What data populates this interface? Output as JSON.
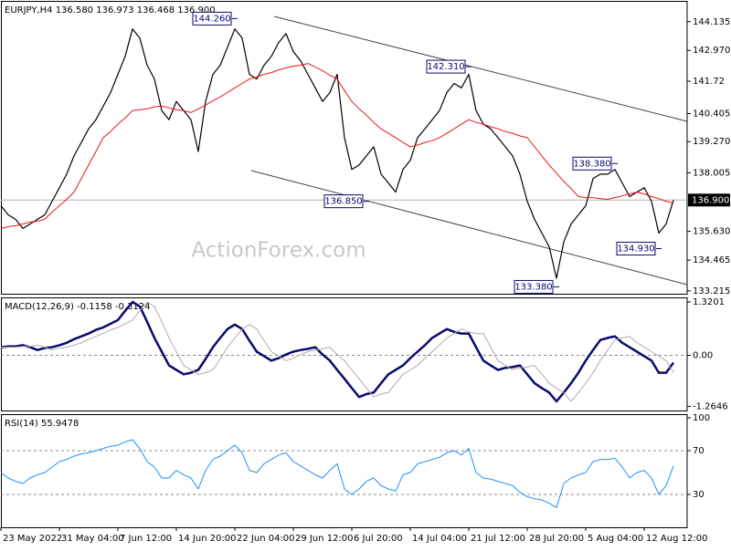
{
  "chart_data": [
    {
      "type": "line",
      "title": "EURJPY,H4  136.580 136.973 136.468 136.900",
      "watermark": "ActionForex.com",
      "ylim": [
        133.1,
        144.94
      ],
      "yticks": [
        144.135,
        {
          "value": 142.97,
          "label": "142.970"
        },
        141.72,
        140.405,
        {
          "value": 139.27,
          "label": "139.270"
        },
        138.005,
        {
          "value": 135.63,
          "label": "135.630"
        },
        134.465,
        133.215
      ],
      "last_price": {
        "value": 136.9,
        "label": "136.900"
      },
      "series": [
        {
          "color": "#000000",
          "line_width": 1.2,
          "values": [
            136.67,
            136.3,
            136.12,
            135.75,
            135.93,
            136.12,
            136.3,
            136.85,
            137.4,
            137.95,
            138.69,
            139.24,
            139.79,
            140.16,
            140.71,
            141.26,
            142.0,
            142.73,
            143.84,
            143.47,
            142.37,
            141.81,
            140.53,
            140.16,
            140.9,
            140.53,
            140.16,
            138.87,
            140.9,
            142.0,
            142.37,
            143.1,
            143.84,
            143.47,
            142.0,
            141.81,
            142.37,
            142.73,
            143.29,
            143.65,
            142.92,
            142.55,
            142.0,
            141.45,
            140.9,
            141.26,
            142.0,
            139.43,
            138.14,
            138.32,
            138.69,
            139.06,
            137.95,
            137.59,
            137.22,
            138.14,
            138.51,
            139.43,
            139.79,
            140.16,
            140.53,
            141.26,
            141.63,
            141.45,
            142.0,
            140.53,
            139.98,
            139.79,
            139.43,
            139.06,
            138.69,
            137.95,
            136.85,
            136.12,
            135.56,
            135.01,
            133.73,
            135.2,
            135.93,
            136.3,
            136.67,
            137.77,
            137.95,
            137.95,
            138.14,
            137.59,
            137.04,
            137.22,
            137.4,
            136.85,
            135.56,
            135.93,
            136.9
          ]
        },
        {
          "color": "#e8161b",
          "line_width": 1,
          "values": [
            135.75,
            135.82,
            135.86,
            135.93,
            136.01,
            136.04,
            136.12,
            136.41,
            136.67,
            136.93,
            137.22,
            137.77,
            138.32,
            138.87,
            139.43,
            139.68,
            139.98,
            140.23,
            140.53,
            140.56,
            140.6,
            140.68,
            140.71,
            140.64,
            140.56,
            140.53,
            140.45,
            140.6,
            140.75,
            140.93,
            141.08,
            141.26,
            141.45,
            141.63,
            141.81,
            141.89,
            142.0,
            142.07,
            142.18,
            142.26,
            142.33,
            142.37,
            142.44,
            142.29,
            142.15,
            141.96,
            141.81,
            141.34,
            140.9,
            140.6,
            140.34,
            140.05,
            139.79,
            139.61,
            139.43,
            139.24,
            139.06,
            139.13,
            139.24,
            139.31,
            139.43,
            139.61,
            139.79,
            139.98,
            140.16,
            140.05,
            139.98,
            139.87,
            139.79,
            139.68,
            139.61,
            139.5,
            139.43,
            139.06,
            138.69,
            138.32,
            137.99,
            137.66,
            137.37,
            137.04,
            137.0,
            137.0,
            136.96,
            136.93,
            137.0,
            137.07,
            137.15,
            137.22,
            137.15,
            137.04,
            136.96,
            136.85,
            136.78
          ]
        }
      ],
      "annotations": [
        {
          "label": "144.260",
          "value": 144.26,
          "at": 32
        },
        {
          "label": "142.310",
          "value": 142.31,
          "at": 64
        },
        {
          "label": "136.850",
          "value": 136.85,
          "at": 50
        },
        {
          "label": "133.380",
          "value": 133.38,
          "at": 76
        },
        {
          "label": "138.380",
          "value": 138.38,
          "at": 84
        },
        {
          "label": "134.930",
          "value": 134.93,
          "at": 90
        }
      ]
    },
    {
      "type": "line",
      "title": "MACD(12,26,9) -0.1158 -0.3124",
      "ylim": [
        -1.365,
        1.41
      ],
      "yticks": [
        1.3201,
        {
          "value": 0,
          "label": "0.00"
        },
        -1.2646
      ],
      "levels": [
        0
      ],
      "series": [
        {
          "color": "#0a0a6e",
          "line_width": 2.5,
          "values": [
            0.2,
            0.22,
            0.22,
            0.25,
            0.2,
            0.13,
            0.18,
            0.2,
            0.25,
            0.31,
            0.4,
            0.47,
            0.54,
            0.63,
            0.69,
            0.78,
            0.87,
            1.1,
            1.32,
            1.21,
            0.83,
            0.43,
            0.09,
            -0.25,
            -0.36,
            -0.47,
            -0.43,
            -0.36,
            -0.09,
            0.2,
            0.43,
            0.65,
            0.76,
            0.65,
            0.36,
            0.09,
            -0.02,
            -0.13,
            -0.07,
            0.02,
            0.09,
            0.13,
            0.16,
            0.2,
            0.02,
            -0.13,
            -0.36,
            -0.58,
            -0.81,
            -1.03,
            -0.96,
            -0.92,
            -0.69,
            -0.47,
            -0.36,
            -0.25,
            -0.07,
            0.09,
            0.25,
            0.43,
            0.54,
            0.65,
            0.58,
            0.54,
            0.54,
            0.2,
            -0.13,
            -0.25,
            -0.36,
            -0.31,
            -0.29,
            -0.25,
            -0.47,
            -0.69,
            -0.81,
            -0.92,
            -1.14,
            -0.92,
            -0.69,
            -0.43,
            -0.13,
            0.13,
            0.38,
            0.43,
            0.47,
            0.31,
            0.2,
            0.09,
            -0.02,
            -0.13,
            -0.43,
            -0.43,
            -0.18
          ]
        },
        {
          "color": "#b8a8a8",
          "line_width": 1,
          "values": [
            0.2,
            0.2,
            0.2,
            0.22,
            0.22,
            0.25,
            0.2,
            0.13,
            0.18,
            0.2,
            0.25,
            0.31,
            0.4,
            0.47,
            0.54,
            0.63,
            0.69,
            0.78,
            0.87,
            1.1,
            1.32,
            1.21,
            0.83,
            0.43,
            0.09,
            -0.25,
            -0.36,
            -0.47,
            -0.43,
            -0.36,
            -0.09,
            0.2,
            0.43,
            0.65,
            0.76,
            0.65,
            0.36,
            0.09,
            -0.02,
            -0.13,
            -0.07,
            0.02,
            0.09,
            0.13,
            0.16,
            0.2,
            0.02,
            -0.13,
            -0.36,
            -0.58,
            -0.81,
            -1.03,
            -0.96,
            -0.92,
            -0.69,
            -0.47,
            -0.36,
            -0.25,
            -0.07,
            0.09,
            0.25,
            0.43,
            0.54,
            0.65,
            0.58,
            0.54,
            0.54,
            0.2,
            -0.13,
            -0.25,
            -0.36,
            -0.31,
            -0.29,
            -0.25,
            -0.47,
            -0.69,
            -0.81,
            -0.92,
            -1.14,
            -0.92,
            -0.69,
            -0.43,
            -0.13,
            0.13,
            0.38,
            0.43,
            0.47,
            0.31,
            0.2,
            0.09,
            -0.02,
            -0.13,
            -0.43
          ]
        }
      ]
    },
    {
      "type": "line",
      "title": "RSI(14) 55.9478",
      "ylim": [
        0,
        102.5
      ],
      "yticks": [
        100,
        70,
        30
      ],
      "levels": [
        70,
        30
      ],
      "categories": [
        "23 May 2022",
        null,
        null,
        null,
        null,
        null,
        null,
        null,
        "31 May 04:00",
        null,
        null,
        null,
        null,
        null,
        null,
        null,
        "7 Jun 12:00",
        null,
        null,
        null,
        null,
        null,
        null,
        null,
        "14 Jun 20:00",
        null,
        null,
        null,
        null,
        null,
        null,
        null,
        "22 Jun 04:00",
        null,
        null,
        null,
        null,
        null,
        null,
        null,
        "29 Jun 12:00",
        null,
        null,
        null,
        null,
        null,
        null,
        null,
        "6 Jul 20:00",
        null,
        null,
        null,
        null,
        null,
        null,
        null,
        "14 Jul 04:00",
        null,
        null,
        null,
        null,
        null,
        null,
        null,
        "21 Jul 12:00",
        null,
        null,
        null,
        null,
        null,
        null,
        null,
        "28 Jul 20:00",
        null,
        null,
        null,
        null,
        null,
        null,
        null,
        "5 Aug 04:00",
        null,
        null,
        null,
        null,
        null,
        null,
        null,
        "12 Aug 12:00",
        null,
        null,
        null,
        null
      ],
      "series": [
        {
          "color": "#1e90ff",
          "line_width": 1,
          "values": [
            50,
            45,
            42,
            40,
            45,
            48,
            50,
            55,
            60,
            62,
            65,
            67,
            68,
            70,
            72,
            74,
            75,
            78,
            80,
            72,
            60,
            55,
            45,
            45,
            52,
            48,
            45,
            35,
            52,
            62,
            65,
            70,
            75,
            68,
            52,
            50,
            58,
            62,
            66,
            68,
            60,
            56,
            52,
            48,
            45,
            52,
            58,
            35,
            30,
            35,
            42,
            45,
            38,
            35,
            33,
            48,
            50,
            58,
            60,
            62,
            64,
            68,
            70,
            66,
            72,
            50,
            45,
            44,
            42,
            40,
            38,
            32,
            28,
            26,
            25,
            22,
            18,
            40,
            45,
            48,
            50,
            60,
            62,
            62,
            63,
            55,
            45,
            50,
            52,
            45,
            30,
            38,
            56
          ]
        }
      ]
    }
  ]
}
